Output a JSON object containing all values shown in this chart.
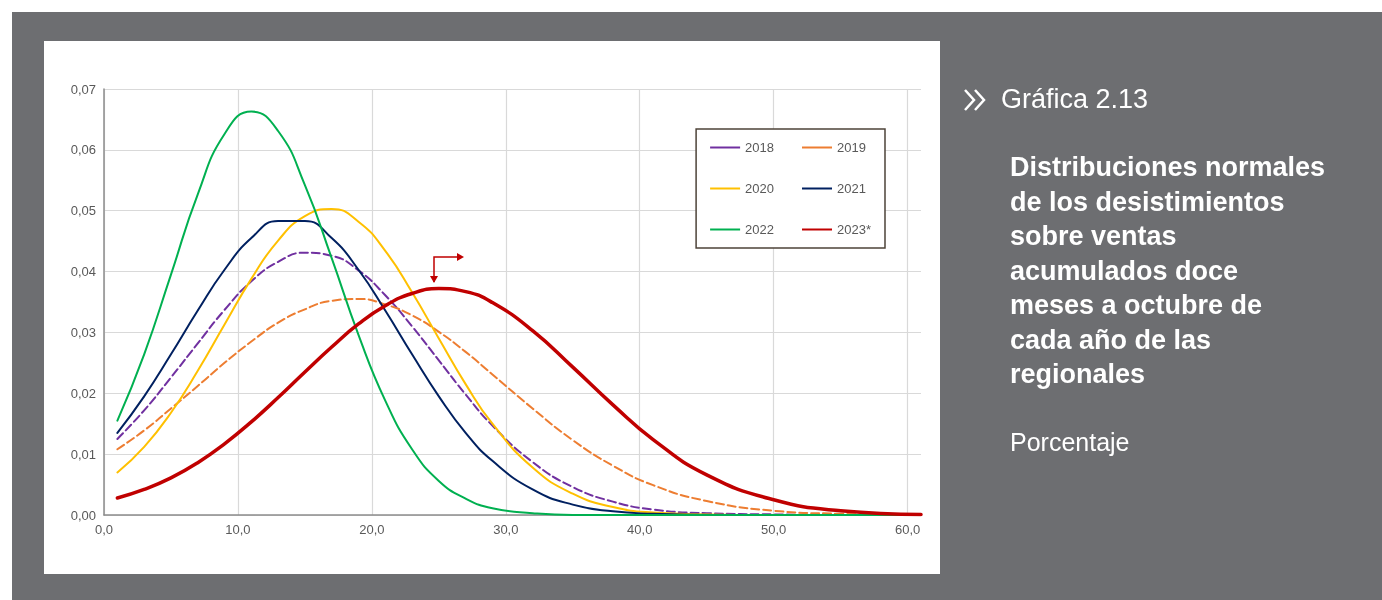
{
  "chart_data": {
    "type": "line",
    "title": "Distribuciones normales de los desistimientos sobre ventas acumulados doce meses a octubre de cada año de las regionales",
    "subtitle": "Porcentaje",
    "annotations": [
      "Gráfica 2.13"
    ],
    "x": [
      1,
      3,
      5,
      7,
      9,
      11,
      13,
      15,
      17,
      19,
      21,
      23,
      25,
      27,
      29,
      32,
      35,
      38,
      41,
      45,
      50,
      55,
      61
    ],
    "series": [
      {
        "name": "2018",
        "color": "#7030a0",
        "line_style": "dashed",
        "values": [
          0.0125,
          0.0172,
          0.0226,
          0.0282,
          0.0337,
          0.0384,
          0.0416,
          0.0431,
          0.0426,
          0.0402,
          0.0361,
          0.031,
          0.0254,
          0.0198,
          0.0147,
          0.0087,
          0.0046,
          0.0022,
          0.0009,
          0.0003,
          0.0001,
          0,
          0
        ]
      },
      {
        "name": "2019",
        "color": "#ed7d31",
        "line_style": "dashed",
        "values": [
          0.0108,
          0.0139,
          0.0175,
          0.0212,
          0.025,
          0.0285,
          0.0316,
          0.0338,
          0.0352,
          0.0355,
          0.0346,
          0.0328,
          0.0301,
          0.0268,
          0.0231,
          0.0175,
          0.0123,
          0.0081,
          0.0049,
          0.0023,
          0.0007,
          0.0002,
          0
        ]
      },
      {
        "name": "2020",
        "color": "#ffc000",
        "line_style": "solid",
        "values": [
          0.007,
          0.0112,
          0.0168,
          0.0237,
          0.0313,
          0.0388,
          0.0451,
          0.0491,
          0.0503,
          0.0482,
          0.0434,
          0.0366,
          0.029,
          0.0215,
          0.015,
          0.0078,
          0.0035,
          0.0013,
          0.0004,
          0.0001,
          0,
          null,
          null
        ]
      },
      {
        "name": "2021",
        "color": "#002060",
        "line_style": "solid",
        "values": [
          0.0135,
          0.0195,
          0.0264,
          0.0336,
          0.0403,
          0.0455,
          0.0483,
          0.0483,
          0.0455,
          0.0403,
          0.0336,
          0.0264,
          0.0195,
          0.0135,
          0.0089,
          0.0042,
          0.0017,
          0.0006,
          0.0002,
          0,
          null,
          null,
          null
        ]
      },
      {
        "name": "2022",
        "color": "#00b050",
        "line_style": "solid",
        "values": [
          0.0155,
          0.0264,
          0.0395,
          0.0527,
          0.0626,
          0.0663,
          0.0631,
          0.0542,
          0.0422,
          0.0296,
          0.0188,
          0.0108,
          0.0056,
          0.0027,
          0.0011,
          0.0003,
          0,
          0,
          0,
          0,
          0,
          0,
          0
        ]
      },
      {
        "name": "2023*",
        "color": "#c00000",
        "line_style": "solid",
        "values": [
          0.0028,
          0.0042,
          0.0061,
          0.0086,
          0.0117,
          0.0153,
          0.0193,
          0.0235,
          0.0276,
          0.0314,
          0.0344,
          0.0364,
          0.0372,
          0.0367,
          0.0349,
          0.0303,
          0.0243,
          0.0181,
          0.0124,
          0.0066,
          0.0025,
          0.0007,
          0.0001
        ]
      }
    ],
    "xlim": [
      0,
      61
    ],
    "xticks": [
      {
        "value": 0,
        "label": "0,0"
      },
      {
        "value": 10,
        "label": "10,0"
      },
      {
        "value": 20,
        "label": "20,0"
      },
      {
        "value": 30,
        "label": "30,0"
      },
      {
        "value": 40,
        "label": "40,0"
      },
      {
        "value": 50,
        "label": "50,0"
      },
      {
        "value": 60,
        "label": "60,0"
      }
    ],
    "ylim": [
      0,
      0.07
    ],
    "yticks": [
      {
        "value": 0,
        "label": "0,00"
      },
      {
        "value": 0.01,
        "label": "0,01"
      },
      {
        "value": 0.02,
        "label": "0,02"
      },
      {
        "value": 0.03,
        "label": "0,03"
      },
      {
        "value": 0.04,
        "label": "0,04"
      },
      {
        "value": 0.05,
        "label": "0,05"
      },
      {
        "value": 0.06,
        "label": "0,06"
      },
      {
        "value": 0.07,
        "label": "0,07"
      }
    ],
    "grid": true,
    "legend": "top right",
    "marker": "none"
  }
}
